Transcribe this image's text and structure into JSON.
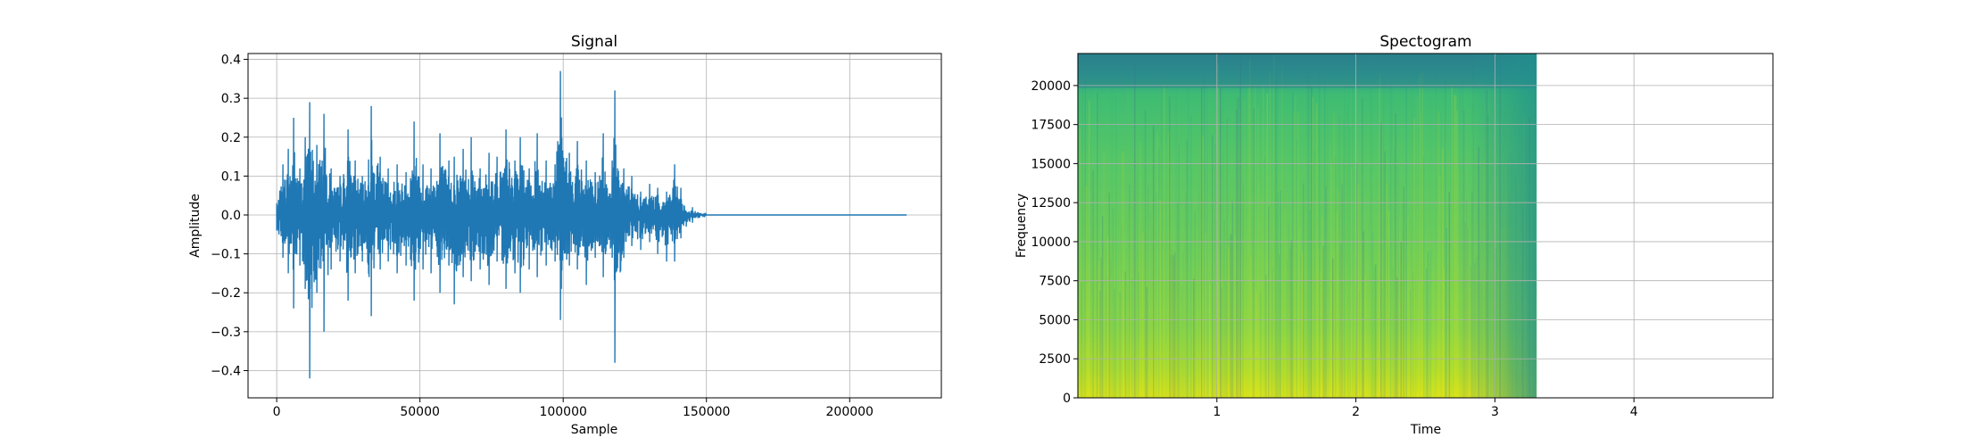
{
  "chart_data": [
    {
      "type": "line",
      "title": "Signal",
      "xlabel": "Sample",
      "ylabel": "Amplitude",
      "xlim": [
        -10000,
        232000
      ],
      "ylim": [
        -0.47,
        0.415
      ],
      "grid": true,
      "xticks": [
        0,
        50000,
        100000,
        150000,
        200000
      ],
      "xtick_labels": [
        "0",
        "50000",
        "100000",
        "150000",
        "200000"
      ],
      "yticks": [
        -0.4,
        -0.3,
        -0.2,
        -0.1,
        0.0,
        0.1,
        0.2,
        0.3,
        0.4
      ],
      "ytick_labels": [
        "−0.4",
        "−0.3",
        "−0.2",
        "−0.1",
        "0.0",
        "0.1",
        "0.2",
        "0.3",
        "0.4"
      ],
      "series": [
        {
          "color": "#1f77b4",
          "x": [
            0,
            2000,
            4000,
            6000,
            8000,
            10000,
            11600,
            14000,
            16500,
            19000,
            22000,
            25000,
            27500,
            30000,
            33000,
            36000,
            39000,
            42000,
            45000,
            48000,
            51000,
            54000,
            57000,
            60000,
            62000,
            65000,
            68000,
            71000,
            74000,
            77000,
            80000,
            83000,
            85000,
            88000,
            91000,
            94000,
            97000,
            99000,
            102000,
            105000,
            108000,
            111000,
            114000,
            117000,
            118000,
            121000,
            124000,
            127000,
            130000,
            133000,
            136000,
            139000,
            141000,
            143000,
            145000,
            150000,
            160000,
            175000,
            190000,
            205000,
            220000
          ],
          "upper": [
            0.03,
            0.13,
            0.17,
            0.25,
            0.12,
            0.2,
            0.29,
            0.18,
            0.26,
            0.12,
            0.1,
            0.22,
            0.14,
            0.1,
            0.28,
            0.15,
            0.12,
            0.13,
            0.11,
            0.24,
            0.13,
            0.12,
            0.21,
            0.14,
            0.15,
            0.17,
            0.2,
            0.12,
            0.16,
            0.15,
            0.22,
            0.14,
            0.2,
            0.12,
            0.21,
            0.14,
            0.13,
            0.37,
            0.16,
            0.19,
            0.14,
            0.11,
            0.21,
            0.14,
            0.32,
            0.12,
            0.1,
            0.06,
            0.08,
            0.07,
            0.06,
            0.13,
            0.07,
            0.01,
            0.02,
            0.0,
            0.0,
            0.0,
            0.0,
            0.0,
            0.0
          ],
          "lower": [
            -0.04,
            -0.11,
            -0.15,
            -0.24,
            -0.13,
            -0.19,
            -0.42,
            -0.2,
            -0.3,
            -0.14,
            -0.12,
            -0.22,
            -0.15,
            -0.12,
            -0.26,
            -0.14,
            -0.12,
            -0.15,
            -0.13,
            -0.22,
            -0.14,
            -0.15,
            -0.2,
            -0.13,
            -0.23,
            -0.16,
            -0.17,
            -0.14,
            -0.18,
            -0.12,
            -0.19,
            -0.15,
            -0.2,
            -0.14,
            -0.16,
            -0.13,
            -0.12,
            -0.27,
            -0.13,
            -0.14,
            -0.18,
            -0.11,
            -0.16,
            -0.11,
            -0.38,
            -0.11,
            -0.08,
            -0.09,
            -0.07,
            -0.1,
            -0.12,
            -0.12,
            -0.06,
            -0.03,
            -0.02,
            0.0,
            0.0,
            0.0,
            0.0,
            0.0,
            0.0
          ]
        }
      ]
    },
    {
      "type": "heatmap",
      "title": "Spectogram",
      "xlabel": "Time",
      "ylabel": "Frequency",
      "xlim": [
        0,
        5
      ],
      "ylim": [
        0,
        22050
      ],
      "data_extent_x": [
        0,
        3.3
      ],
      "grid": true,
      "colormap": "viridis",
      "xticks": [
        1,
        2,
        3,
        4
      ],
      "xtick_labels": [
        "1",
        "2",
        "3",
        "4"
      ],
      "yticks": [
        0,
        2500,
        5000,
        7500,
        10000,
        12500,
        15000,
        17500,
        20000
      ],
      "ytick_labels": [
        "0",
        "2500",
        "5000",
        "7500",
        "10000",
        "12500",
        "15000",
        "17500",
        "20000"
      ]
    }
  ]
}
